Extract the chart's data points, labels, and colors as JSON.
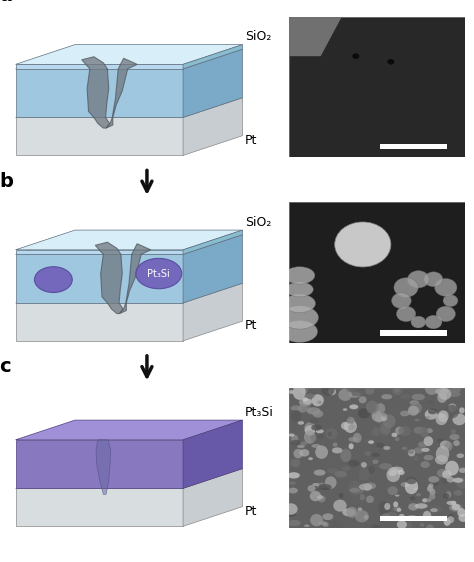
{
  "panel_labels": [
    "a",
    "b",
    "c"
  ],
  "panel_label_fontsize": 14,
  "panel_label_fontweight": "bold",
  "arrow_color": "#111111",
  "background_color": "#ffffff",
  "sio2_label": "SiO₂",
  "pt3si_label": "Pt₃Si",
  "pt_label": "Pt",
  "sio2_label_fontsize": 9,
  "pt_label_fontsize": 9,
  "pt3si_label_fontsize": 9,
  "colors": {
    "sio2_top": "#c8e0f0",
    "sio2_body": "#9fc8e0",
    "sio2_edge": "#7aaac8",
    "sio2_thin_top": "#d8eef8",
    "sio2_thin_body": "#b8d8ee",
    "sio2_thin_edge": "#8abcd0",
    "pt_top": "#a0a8b0",
    "pt_side": "#c8cdd2",
    "pt_front": "#d8dde0",
    "pt3si_body": "#8878c0",
    "pt3si_top": "#a090d8",
    "pt3si_edge": "#6858a8",
    "sem_a_bg": "#282828",
    "sem_b_bg": "#222222",
    "sem_c_bg": "#585858",
    "nanowire_color": "#707880",
    "nanowire_edge": "#505860",
    "pt3si_blob_fill": "#7060b8",
    "pt3si_blob_edge": "#5848a0",
    "nw_c_color": "#6868a0",
    "nw_c_edge": "#484880"
  },
  "layout": {
    "fig_width": 4.74,
    "fig_height": 5.62,
    "dpi": 100
  }
}
